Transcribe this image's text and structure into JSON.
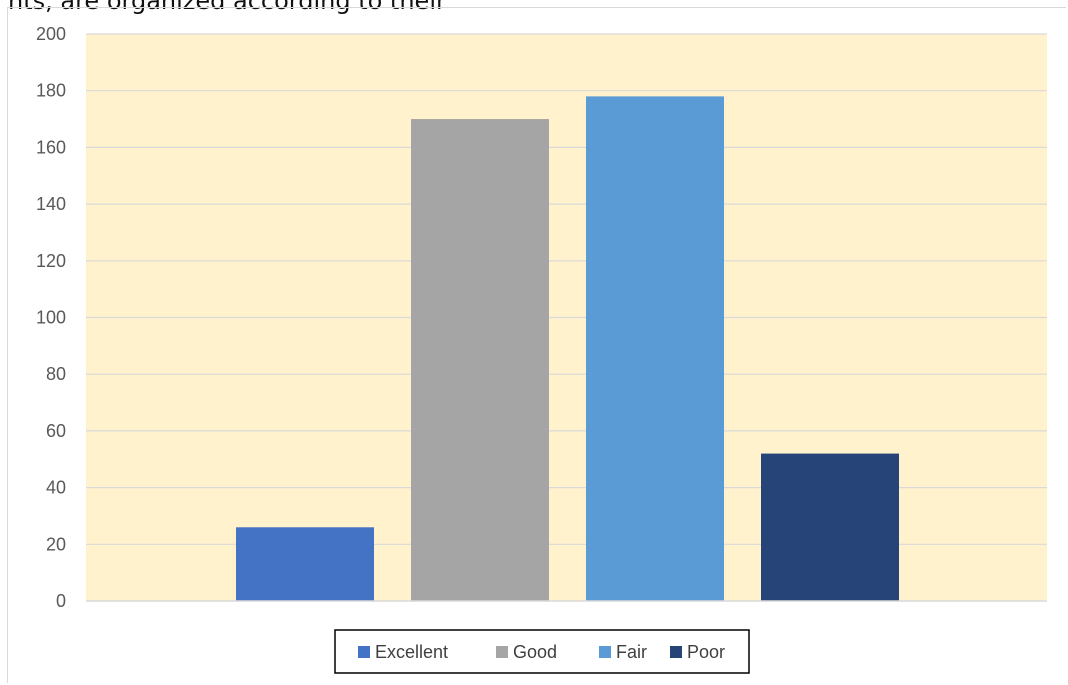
{
  "page": {
    "top_text": "nts, are organized according to their"
  },
  "chart_data": {
    "type": "bar",
    "categories": [
      "Excellent",
      "Good",
      "Fair",
      "Poor"
    ],
    "values": [
      26,
      170,
      178,
      52
    ],
    "colors": [
      "#4472c4",
      "#a5a5a5",
      "#5b9bd5",
      "#264478"
    ],
    "ylim": [
      0,
      200
    ],
    "yticks": [
      0,
      20,
      40,
      60,
      80,
      100,
      120,
      140,
      160,
      180,
      200
    ],
    "plot_background": "#fff2cc",
    "gridline_color": "#d9d9d9",
    "grid": true,
    "legend": {
      "placement": "bottom",
      "entries": [
        "Excellent",
        "Good",
        "Fair",
        "Poor"
      ]
    },
    "title": "",
    "xlabel": "",
    "ylabel": ""
  }
}
